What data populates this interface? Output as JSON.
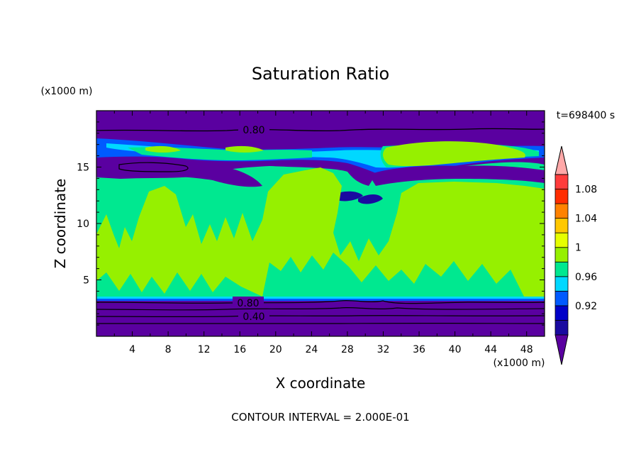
{
  "chart_data": {
    "type": "heatmap",
    "title": "Saturation Ratio",
    "xlabel": "X coordinate",
    "ylabel": "Z coordinate",
    "x_unit": "(x1000 m)",
    "y_unit": "(x1000 m)",
    "time_label": "t=698400 s",
    "footer": "CONTOUR INTERVAL = 2.000E-01",
    "xlim": [
      0,
      50
    ],
    "ylim": [
      0,
      20
    ],
    "x_ticks": [
      "4",
      "8",
      "12",
      "16",
      "20",
      "24",
      "28",
      "32",
      "36",
      "40",
      "44",
      "48"
    ],
    "y_ticks": [
      "5",
      "10",
      "15"
    ],
    "contour_labels": [
      "0.80",
      "0.80",
      "0.40"
    ],
    "colorbar": {
      "tick_labels": [
        "0.92",
        "0.96",
        "1",
        "1.04",
        "1.08"
      ],
      "levels": [
        0.88,
        0.9,
        0.92,
        0.94,
        0.96,
        0.98,
        1.0,
        1.02,
        1.04,
        1.06,
        1.08,
        1.1
      ],
      "colors": [
        "#5a00a0",
        "#1a0aa0",
        "#0000c8",
        "#005aff",
        "#00d8ff",
        "#00e890",
        "#96f000",
        "#e6ff00",
        "#ffc800",
        "#ff8200",
        "#ff2d00",
        "#ff3c3c",
        "#ffa8a8"
      ]
    }
  }
}
